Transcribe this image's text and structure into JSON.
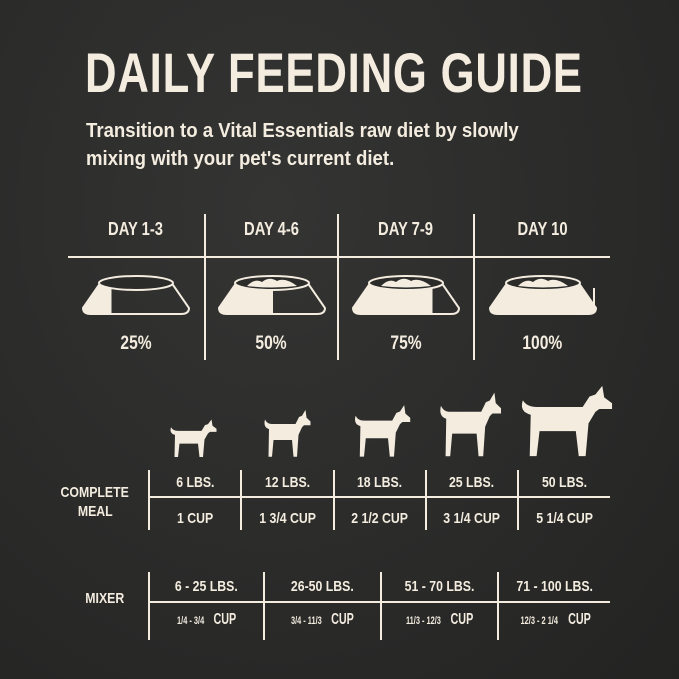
{
  "title": "DAILY FEEDING GUIDE",
  "subtitle_lines": [
    "Transition to a Vital Essentials raw diet by slowly",
    "mixing with your pet's current diet."
  ],
  "colors": {
    "background": "#2b2b2a",
    "foreground": "#f3ecdf"
  },
  "transition": [
    {
      "day": "DAY 1-3",
      "percent": "25%",
      "fill": 0.25
    },
    {
      "day": "DAY 4-6",
      "percent": "50%",
      "fill": 0.5
    },
    {
      "day": "DAY 7-9",
      "percent": "75%",
      "fill": 0.75
    },
    {
      "day": "DAY 10",
      "percent": "100%",
      "fill": 1.0
    }
  ],
  "dogs": [
    "chihuahua-icon",
    "poodle-icon",
    "pug-icon",
    "husky-icon",
    "retriever-icon"
  ],
  "complete_meal": {
    "label_lines": [
      "COMPLETE",
      "MEAL"
    ],
    "weights": [
      "6 LBS.",
      "12 LBS.",
      "18 LBS.",
      "25 LBS.",
      "50 LBS."
    ],
    "cups": [
      "1 CUP",
      "1 3/4 CUP",
      "2 1/2 CUP",
      "3 1/4 CUP",
      "5 1/4 CUP"
    ]
  },
  "mixer": {
    "label": "MIXER",
    "weights": [
      "6 - 25 LBS.",
      "26-50 LBS.",
      "51 - 70 LBS.",
      "71 - 100 LBS."
    ],
    "amounts": [
      "1/4 - 3/4",
      "3/4 - 11/3",
      "11/3 - 12/3",
      "12/3 - 2 1/4"
    ],
    "unit": "CUP"
  }
}
